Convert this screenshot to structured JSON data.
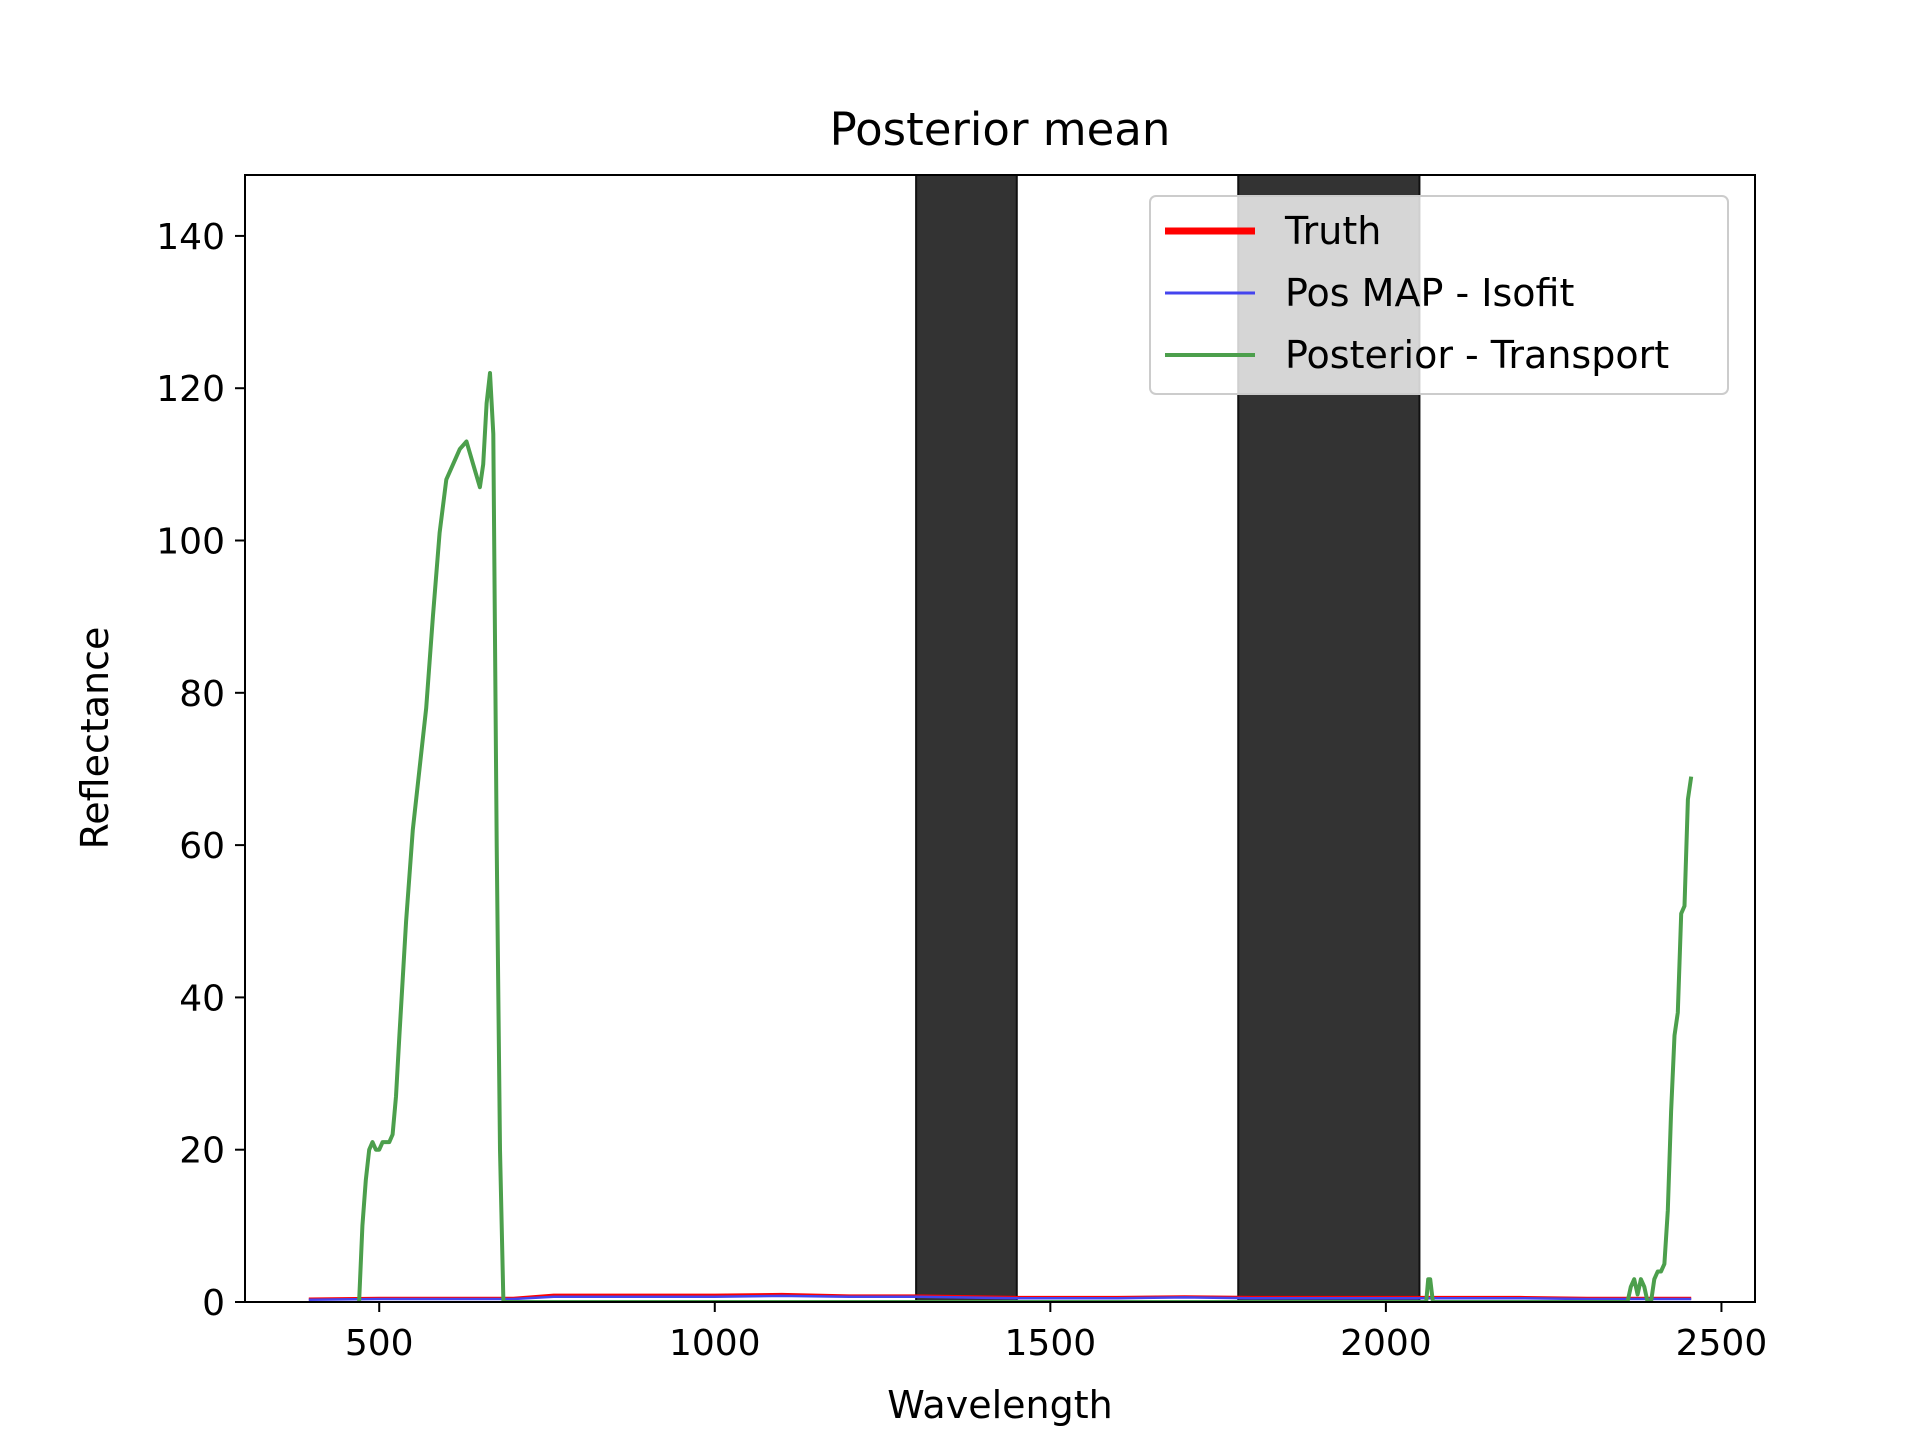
{
  "chart_data": {
    "type": "line",
    "title": "Posterior mean",
    "xlabel": "Wavelength",
    "ylabel": "Reflectance",
    "xlim": [
      300,
      2550
    ],
    "ylim": [
      0,
      148
    ],
    "xticks": [
      500,
      1000,
      1500,
      2000,
      2500
    ],
    "yticks": [
      0,
      20,
      40,
      60,
      80,
      100,
      120,
      140
    ],
    "grid": false,
    "legend_position": "top-right",
    "shaded_regions": [
      {
        "x0": 1300,
        "x1": 1450,
        "color": "#333333"
      },
      {
        "x0": 1780,
        "x1": 2050,
        "color": "#333333"
      }
    ],
    "series": [
      {
        "name": "Truth",
        "color": "#ff0000",
        "legend_width": 3.5,
        "x": [
          395,
          500,
          700,
          760,
          1000,
          1100,
          1200,
          1300,
          1450,
          1600,
          1700,
          1800,
          2000,
          2200,
          2300,
          2455
        ],
        "y": [
          0.4,
          0.5,
          0.5,
          0.9,
          0.9,
          1.0,
          0.8,
          0.8,
          0.6,
          0.6,
          0.7,
          0.6,
          0.6,
          0.6,
          0.5,
          0.5
        ]
      },
      {
        "name": "Pos MAP - Isofit",
        "color": "#4444ee",
        "legend_width": 1.5,
        "x": [
          395,
          500,
          700,
          760,
          1000,
          1100,
          1200,
          1300,
          1450,
          1600,
          1700,
          1800,
          2000,
          2200,
          2300,
          2455
        ],
        "y": [
          0.3,
          0.4,
          0.4,
          0.7,
          0.7,
          0.8,
          0.7,
          0.7,
          0.5,
          0.5,
          0.6,
          0.5,
          0.5,
          0.5,
          0.4,
          0.4
        ]
      },
      {
        "name": "Posterior - Transport",
        "color": "#4c9f4c",
        "legend_width": 2,
        "x": [
          470,
          475,
          480,
          485,
          490,
          495,
          500,
          505,
          510,
          515,
          520,
          525,
          530,
          540,
          550,
          560,
          570,
          580,
          590,
          600,
          610,
          620,
          630,
          640,
          650,
          655,
          660,
          665,
          670,
          675,
          680,
          685,
          2060,
          2063,
          2066,
          2070,
          2360,
          2365,
          2370,
          2375,
          2380,
          2385,
          2390,
          2395,
          2400,
          2405,
          2410,
          2415,
          2420,
          2425,
          2430,
          2435,
          2440,
          2445,
          2450,
          2455
        ],
        "y": [
          0,
          10,
          16,
          20,
          21,
          20,
          20,
          21,
          21,
          21,
          22,
          27,
          35,
          50,
          62,
          70,
          78,
          90,
          101,
          108,
          110,
          112,
          113,
          110,
          107,
          110,
          118,
          122,
          114,
          60,
          20,
          0,
          0,
          3,
          3,
          0,
          0,
          2,
          3,
          1,
          3,
          2,
          0,
          0,
          3,
          4,
          4,
          5,
          12,
          25,
          35,
          38,
          51,
          52,
          66,
          69
        ]
      }
    ]
  }
}
